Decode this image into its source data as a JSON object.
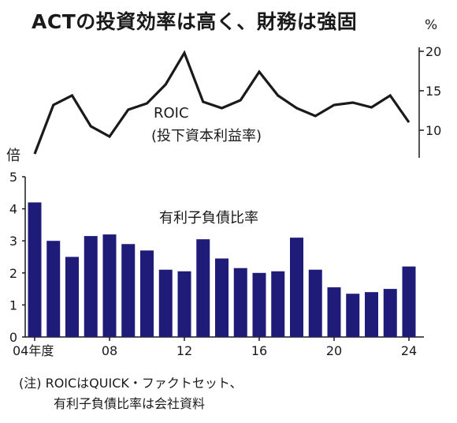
{
  "title": "ACTの投資効率は高く、財務は強固",
  "note_lines": [
    "(注) ROICはQUICK・ファクトセット、",
    "有利子負債比率は会社資料"
  ],
  "chart_data": [
    {
      "type": "line",
      "series_label_lines": [
        "ROIC",
        "(投下資本利益率)"
      ],
      "unit": "%",
      "x": [
        2004,
        2005,
        2006,
        2007,
        2008,
        2009,
        2010,
        2011,
        2012,
        2013,
        2014,
        2015,
        2016,
        2017,
        2018,
        2019,
        2020,
        2021,
        2022,
        2023,
        2024
      ],
      "values": [
        7.0,
        13.2,
        14.4,
        10.5,
        9.2,
        12.6,
        13.4,
        15.8,
        19.8,
        13.6,
        12.8,
        13.8,
        17.4,
        14.4,
        12.8,
        11.8,
        13.2,
        13.5,
        12.9,
        14.4,
        11.0
      ],
      "yticks": [
        10,
        15,
        20
      ],
      "ylim": [
        6.5,
        20.5
      ],
      "color": "#1a1a1a"
    },
    {
      "type": "bar",
      "series_label": "有利子負債比率",
      "unit": "倍",
      "x": [
        2004,
        2005,
        2006,
        2007,
        2008,
        2009,
        2010,
        2011,
        2012,
        2013,
        2014,
        2015,
        2016,
        2017,
        2018,
        2019,
        2020,
        2021,
        2022,
        2023,
        2024
      ],
      "values": [
        4.2,
        3.0,
        2.5,
        3.15,
        3.2,
        2.9,
        2.7,
        2.1,
        2.05,
        3.05,
        2.45,
        2.15,
        2.0,
        2.05,
        3.1,
        2.1,
        1.55,
        1.35,
        1.4,
        1.5,
        2.2
      ],
      "xtick_labels": [
        {
          "x": 2004,
          "label": "04年度"
        },
        {
          "x": 2008,
          "label": "08"
        },
        {
          "x": 2012,
          "label": "12"
        },
        {
          "x": 2016,
          "label": "16"
        },
        {
          "x": 2020,
          "label": "20"
        },
        {
          "x": 2024,
          "label": "24"
        }
      ],
      "yticks": [
        0,
        1,
        2,
        3,
        4,
        5
      ],
      "ylim": [
        0,
        5
      ],
      "color": "#1f1b78"
    }
  ]
}
